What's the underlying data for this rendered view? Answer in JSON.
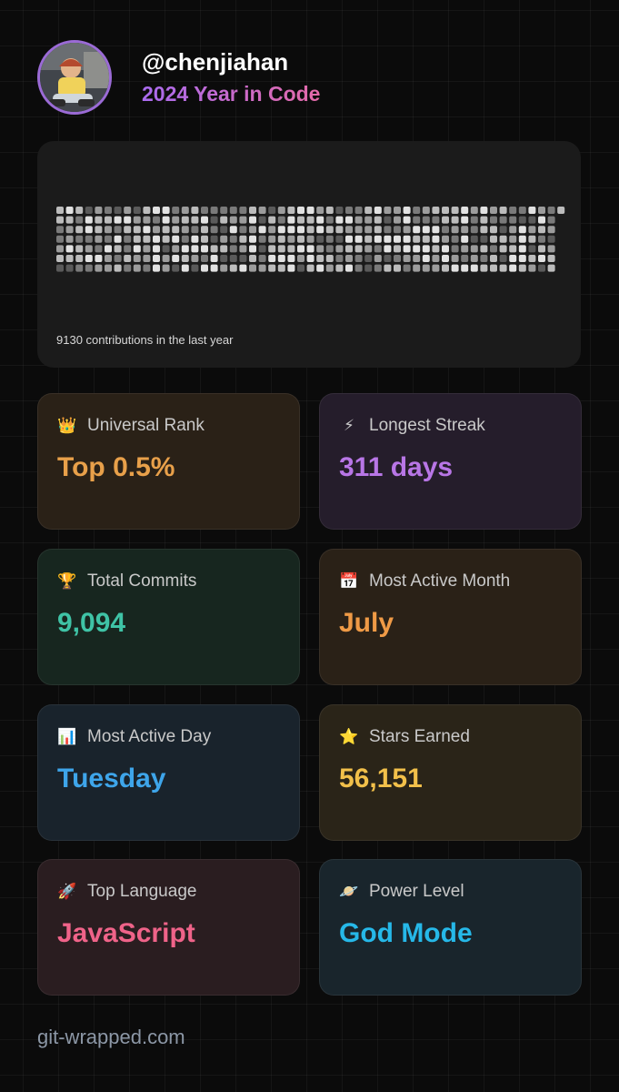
{
  "profile": {
    "username": "@chenjiahan",
    "subtitle": "2024 Year in Code",
    "avatar_icon": "user-photo-icon"
  },
  "contributions": {
    "caption": "9130 contributions in the last year",
    "weeks": 53,
    "days": 7,
    "last_week_days": 1,
    "levels_note_colors": [
      "#5a5a5a",
      "#7a7a7a",
      "#9c9c9c",
      "#bcbcbc",
      "#e2e2e2"
    ]
  },
  "stats": [
    {
      "icon": "crown-icon",
      "glyph": "👑",
      "label": "Universal Rank",
      "value": "Top 0.5%",
      "color": "#e8a04a",
      "bg": "#2a2117"
    },
    {
      "icon": "lightning-icon",
      "glyph": "⚡",
      "label": "Longest Streak",
      "value": "311 days",
      "color": "#b876e6",
      "bg": "#251d2b"
    },
    {
      "icon": "trophy-icon",
      "glyph": "🏆",
      "label": "Total Commits",
      "value": "9,094",
      "color": "#3fc3a6",
      "bg": "#17261f"
    },
    {
      "icon": "calendar-icon",
      "glyph": "📅",
      "label": "Most Active Month",
      "value": "July",
      "color": "#ef9a46",
      "bg": "#2a2117"
    },
    {
      "icon": "bar-chart-icon",
      "glyph": "📊",
      "label": "Most Active Day",
      "value": "Tuesday",
      "color": "#3ea5ea",
      "bg": "#19232c"
    },
    {
      "icon": "star-icon",
      "glyph": "⭐",
      "label": "Stars Earned",
      "value": "56,151",
      "color": "#f2c04a",
      "bg": "#2a2418"
    },
    {
      "icon": "rocket-icon",
      "glyph": "🚀",
      "label": "Top Language",
      "value": "JavaScript",
      "color": "#ef6389",
      "bg": "#2a1d20"
    },
    {
      "icon": "planet-icon",
      "glyph": "🪐",
      "label": "Power Level",
      "value": "God Mode",
      "color": "#26b8e8",
      "bg": "#19252c"
    }
  ],
  "footer": {
    "text": "git-wrapped.com"
  }
}
